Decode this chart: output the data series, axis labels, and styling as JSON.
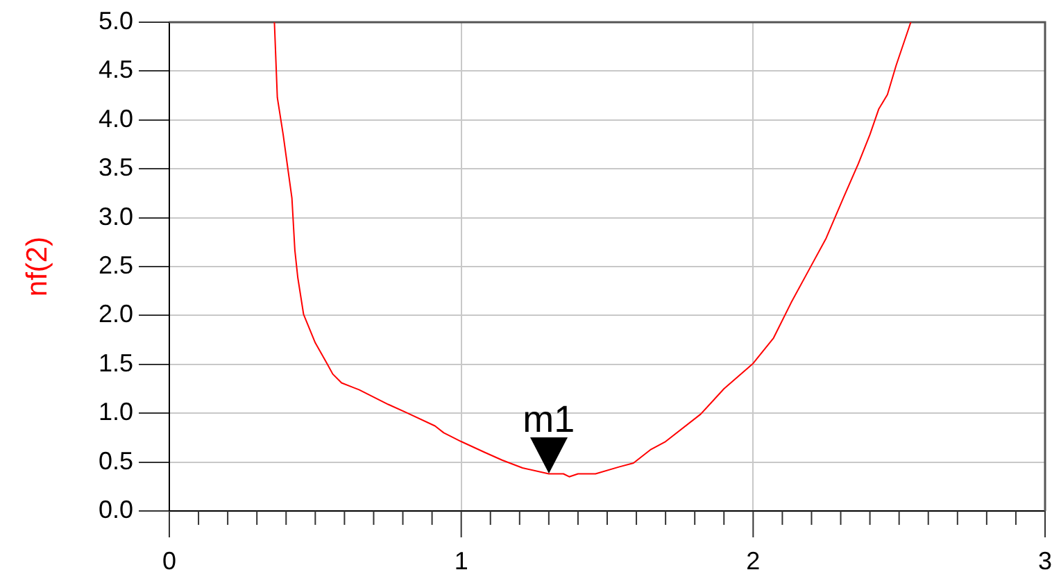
{
  "chart_data": {
    "type": "line",
    "ylabel": "nf(2)",
    "x": [
      0.36,
      0.37,
      0.39,
      0.42,
      0.43,
      0.44,
      0.46,
      0.5,
      0.54,
      0.56,
      0.59,
      0.65,
      0.75,
      0.81,
      0.91,
      0.94,
      1.0,
      1.08,
      1.14,
      1.21,
      1.3,
      1.35,
      1.37,
      1.4,
      1.46,
      1.54,
      1.59,
      1.65,
      1.7,
      1.82,
      1.9,
      2.0,
      2.07,
      2.13,
      2.19,
      2.25,
      2.31,
      2.36,
      2.4,
      2.43,
      2.46,
      2.49,
      2.54
    ],
    "series": [
      {
        "color": "#ff0000",
        "values": [
          5.0,
          4.23,
          3.85,
          3.2,
          2.67,
          2.39,
          2.01,
          1.72,
          1.51,
          1.4,
          1.31,
          1.24,
          1.09,
          1.01,
          0.87,
          0.8,
          0.71,
          0.6,
          0.52,
          0.44,
          0.38,
          0.38,
          0.35,
          0.38,
          0.38,
          0.45,
          0.49,
          0.63,
          0.71,
          0.99,
          1.25,
          1.51,
          1.77,
          2.13,
          2.46,
          2.79,
          3.21,
          3.55,
          3.85,
          4.11,
          4.26,
          4.56,
          5.0
        ]
      }
    ],
    "xlim": [
      0,
      3
    ],
    "ylim": [
      0,
      5
    ],
    "xticks": [
      0,
      {
        "value": 0.1,
        "label": null
      },
      {
        "value": 0.2,
        "label": null
      },
      {
        "value": 0.3,
        "label": null
      },
      {
        "value": 0.4,
        "label": null
      },
      {
        "value": 0.5,
        "label": null
      },
      {
        "value": 0.6,
        "label": null
      },
      {
        "value": 0.7,
        "label": null
      },
      {
        "value": 0.8,
        "label": null
      },
      {
        "value": 0.9,
        "label": null
      },
      1,
      {
        "value": 1.1,
        "label": null
      },
      {
        "value": 1.2,
        "label": null
      },
      {
        "value": 1.3,
        "label": null
      },
      {
        "value": 1.4,
        "label": null
      },
      {
        "value": 1.5,
        "label": null
      },
      {
        "value": 1.6,
        "label": null
      },
      {
        "value": 1.7,
        "label": null
      },
      {
        "value": 1.8,
        "label": null
      },
      {
        "value": 1.9,
        "label": null
      },
      2,
      {
        "value": 2.1,
        "label": null
      },
      {
        "value": 2.2,
        "label": null
      },
      {
        "value": 2.3,
        "label": null
      },
      {
        "value": 2.4,
        "label": null
      },
      {
        "value": 2.5,
        "label": null
      },
      {
        "value": 2.6,
        "label": null
      },
      {
        "value": 2.7,
        "label": null
      },
      {
        "value": 2.8,
        "label": null
      },
      {
        "value": 2.9,
        "label": null
      },
      3
    ],
    "yticks": [
      {
        "value": 0,
        "label": "0.0"
      },
      {
        "value": 0.5,
        "label": "0.5"
      },
      {
        "value": 1,
        "label": "1.0"
      },
      {
        "value": 1.5,
        "label": "1.5"
      },
      {
        "value": 2,
        "label": "2.0"
      },
      {
        "value": 2.5,
        "label": "2.5"
      },
      {
        "value": 3,
        "label": "3.0"
      },
      {
        "value": 3.5,
        "label": "3.5"
      },
      {
        "value": 4,
        "label": "4.0"
      },
      {
        "value": 4.5,
        "label": "4.5"
      },
      {
        "value": 5,
        "label": "5.0"
      }
    ],
    "grid": true,
    "marker": "none",
    "line_style": "solid",
    "annotations": [
      {
        "text": "m1",
        "x": 1.3,
        "y": 0.38
      }
    ]
  }
}
